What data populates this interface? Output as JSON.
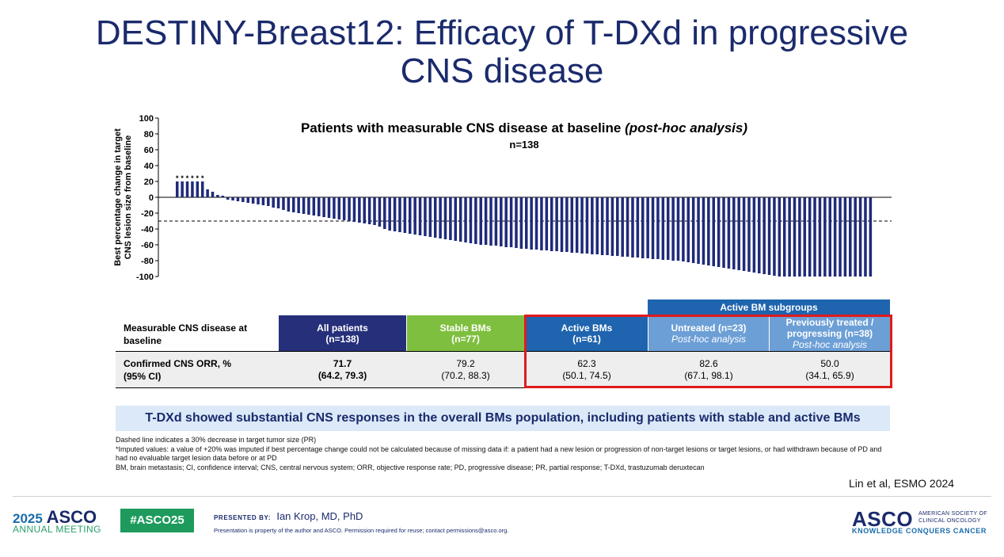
{
  "slide": {
    "title_line1": "DESTINY-Breast12: Efficacy of T-DXd in progressive",
    "title_line2": "CNS disease"
  },
  "chart_data": {
    "type": "bar",
    "title": "Patients with measurable CNS disease at baseline",
    "title_italic": "(post-hoc analysis)",
    "subtitle": "n=138",
    "ylabel_line1": "Best percentage change in target",
    "ylabel_line2": "CNS lesion size from baseline",
    "ylim": [
      -100,
      100
    ],
    "yticks": [
      100,
      80,
      60,
      40,
      20,
      0,
      -20,
      -40,
      -60,
      -80,
      -100
    ],
    "reference_line": -30,
    "imputed_marker": "*",
    "imputed_count": 6,
    "values": [
      20,
      20,
      20,
      20,
      20,
      20,
      10,
      7,
      3,
      2,
      -3,
      -4,
      -5,
      -6,
      -7,
      -8,
      -9,
      -10,
      -11,
      -13,
      -14,
      -16,
      -18,
      -19,
      -20,
      -21,
      -22,
      -23,
      -24,
      -25,
      -26,
      -27,
      -28,
      -29,
      -30,
      -31,
      -32,
      -33,
      -34,
      -35,
      -37,
      -40,
      -42,
      -43,
      -44,
      -45,
      -46,
      -47,
      -48,
      -49,
      -50,
      -51,
      -52,
      -53,
      -54,
      -55,
      -56,
      -57,
      -58,
      -59,
      -60,
      -60,
      -61,
      -61,
      -62,
      -63,
      -63,
      -64,
      -65,
      -65,
      -66,
      -66,
      -67,
      -67,
      -68,
      -68,
      -69,
      -69,
      -70,
      -70,
      -71,
      -71,
      -72,
      -72,
      -73,
      -73,
      -74,
      -74,
      -75,
      -75,
      -76,
      -76,
      -77,
      -77,
      -78,
      -78,
      -79,
      -79,
      -80,
      -80,
      -81,
      -82,
      -83,
      -84,
      -85,
      -86,
      -87,
      -88,
      -89,
      -90,
      -91,
      -92,
      -93,
      -94,
      -95,
      -96,
      -97,
      -98,
      -99,
      -100,
      -100,
      -100,
      -100,
      -100,
      -100,
      -100,
      -100,
      -100,
      -100,
      -100,
      -100,
      -100,
      -100,
      -100,
      -100,
      -100,
      -100,
      -100
    ],
    "bar_color": "#1f2a7a"
  },
  "table": {
    "group_header": "Active BM subgroups",
    "row_header": "Measurable CNS disease at baseline",
    "columns": [
      {
        "label": "All patients",
        "n": "(n=138)",
        "italic": "",
        "color": "#26307a"
      },
      {
        "label": "Stable BMs",
        "n": "(n=77)",
        "italic": "",
        "color": "#7fbf3f"
      },
      {
        "label": "Active BMs",
        "n": "(n=61)",
        "italic": "",
        "color": "#1f64ae"
      },
      {
        "label": "Untreated (n=23)",
        "n": "",
        "italic": "Post-hoc analysis",
        "color": "#6c9fd6"
      },
      {
        "label": "Previously treated /",
        "n": "progressing (n=38)",
        "italic": "Post-hoc analysis",
        "color": "#6c9fd6"
      }
    ],
    "orr_label_line1": "Confirmed CNS ORR, %",
    "orr_label_line2": "(95% CI)",
    "orr": [
      {
        "value": "71.7",
        "ci": "(64.2, 79.3)",
        "bold": true
      },
      {
        "value": "79.2",
        "ci": "(70.2, 88.3)",
        "bold": false
      },
      {
        "value": "62.3",
        "ci": "(50.1, 74.5)",
        "bold": false
      },
      {
        "value": "82.6",
        "ci": "(67.1, 98.1)",
        "bold": false
      },
      {
        "value": "50.0",
        "ci": "(34.1, 65.9)",
        "bold": false
      }
    ]
  },
  "callout": "T-DXd showed substantial CNS responses in the overall BMs population, including patients with stable and active BMs",
  "footnotes": [
    "Dashed line indicates a 30% decrease in target tumor size (PR)",
    "*Imputed values: a value of +20% was imputed if best percentage change could not be calculated because of missing data if: a patient had a new lesion or progression of non-target lesions or target lesions, or had withdrawn because of PD and had no evaluable target lesion data before or at PD",
    "BM, brain metastasis; CI, confidence interval; CNS, central nervous system; ORR, objective response rate; PD, progressive disease; PR, partial response; T-DXd, trastuzumab deruxtecan"
  ],
  "citation": "Lin et al, ESMO 2024",
  "footer": {
    "year": "2025",
    "asco": "ASCO",
    "meeting": "ANNUAL MEETING",
    "hashtag": "#ASCO25",
    "presented_by_label": "PRESENTED BY:",
    "presenter": "Ian Krop, MD, PhD",
    "property_note": "Presentation is property of the author and ASCO. Permission required for reuse; contact permissions@asco.org.",
    "logo_text": "ASCO",
    "logo_sub_line1": "AMERICAN SOCIETY OF",
    "logo_sub_line2": "CLINICAL ONCOLOGY",
    "tagline": "KNOWLEDGE CONQUERS CANCER"
  },
  "colors": {
    "title": "#1a2a6c",
    "highlight_border": "#e01b1b",
    "group_header_bg": "#1f64ae"
  }
}
